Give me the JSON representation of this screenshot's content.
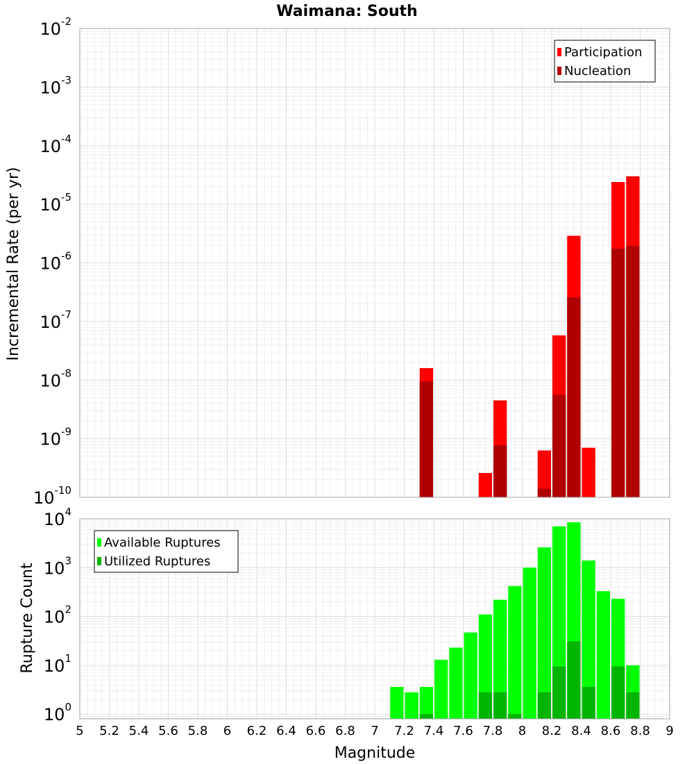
{
  "chart_data": [
    {
      "type": "bar",
      "panel": "top",
      "title": "Waimana: South",
      "ylabel": "Incremental Rate (per yr)",
      "yscale": "log",
      "ylim": [
        1e-10,
        0.01
      ],
      "yticks": [
        {
          "base": "10",
          "exp": "-10"
        },
        {
          "base": "10",
          "exp": "-9"
        },
        {
          "base": "10",
          "exp": "-8"
        },
        {
          "base": "10",
          "exp": "-7"
        },
        {
          "base": "10",
          "exp": "-6"
        },
        {
          "base": "10",
          "exp": "-5"
        },
        {
          "base": "10",
          "exp": "-4"
        },
        {
          "base": "10",
          "exp": "-3"
        },
        {
          "base": "10",
          "exp": "-2"
        }
      ],
      "grid": true,
      "legend_position": "top-right",
      "series": [
        {
          "name": "Participation",
          "color": "#ff0000",
          "x": [
            7.35,
            7.75,
            7.85,
            8.15,
            8.25,
            8.35,
            8.45,
            8.65,
            8.75
          ],
          "values": [
            1.6e-08,
            2.6e-10,
            4.5e-09,
            6.3e-10,
            5.8e-08,
            2.9e-06,
            7e-10,
            2.4e-05,
            3e-05
          ]
        },
        {
          "name": "Nucleation",
          "color": "#b00000",
          "x": [
            7.35,
            7.85,
            8.15,
            8.25,
            8.35,
            8.65,
            8.75
          ],
          "values": [
            9.5e-09,
            7.8e-10,
            1.4e-10,
            5.6e-09,
            2.6e-07,
            1.75e-06,
            1.95e-06
          ]
        }
      ]
    },
    {
      "type": "bar",
      "panel": "bottom",
      "ylabel": "Rupture Count",
      "xlabel": "Magnitude",
      "yscale": "log",
      "ylim": [
        0.8,
        10000
      ],
      "yticks": [
        {
          "base": "10",
          "exp": "0"
        },
        {
          "base": "10",
          "exp": "1"
        },
        {
          "base": "10",
          "exp": "2"
        },
        {
          "base": "10",
          "exp": "3"
        },
        {
          "base": "10",
          "exp": "4"
        }
      ],
      "xlim": [
        5,
        9
      ],
      "xticks": [
        "5",
        "5.2",
        "5.4",
        "5.6",
        "5.8",
        "6",
        "6.2",
        "6.4",
        "6.6",
        "6.8",
        "7",
        "7.2",
        "7.4",
        "7.6",
        "7.8",
        "8",
        "8.2",
        "8.4",
        "8.6",
        "8.8",
        "9"
      ],
      "grid": true,
      "legend_position": "top-left",
      "series": [
        {
          "name": "Available Ruptures",
          "color": "#00ff00",
          "x": [
            7.15,
            7.25,
            7.35,
            7.45,
            7.55,
            7.65,
            7.75,
            7.85,
            7.95,
            8.05,
            8.15,
            8.25,
            8.35,
            8.45,
            8.55,
            8.65,
            8.75
          ],
          "values": [
            3.6,
            2.8,
            3.6,
            13,
            23,
            47,
            110,
            220,
            420,
            1000,
            2600,
            7000,
            8500,
            1400,
            330,
            230,
            10
          ]
        },
        {
          "name": "Utilized Ruptures",
          "color": "#00b400",
          "x": [
            7.35,
            7.75,
            7.85,
            7.95,
            8.15,
            8.25,
            8.35,
            8.45,
            8.65,
            8.75
          ],
          "values": [
            1,
            2.8,
            2.8,
            1,
            2.8,
            9.5,
            31,
            3.6,
            9.5,
            2.8
          ]
        }
      ]
    }
  ]
}
